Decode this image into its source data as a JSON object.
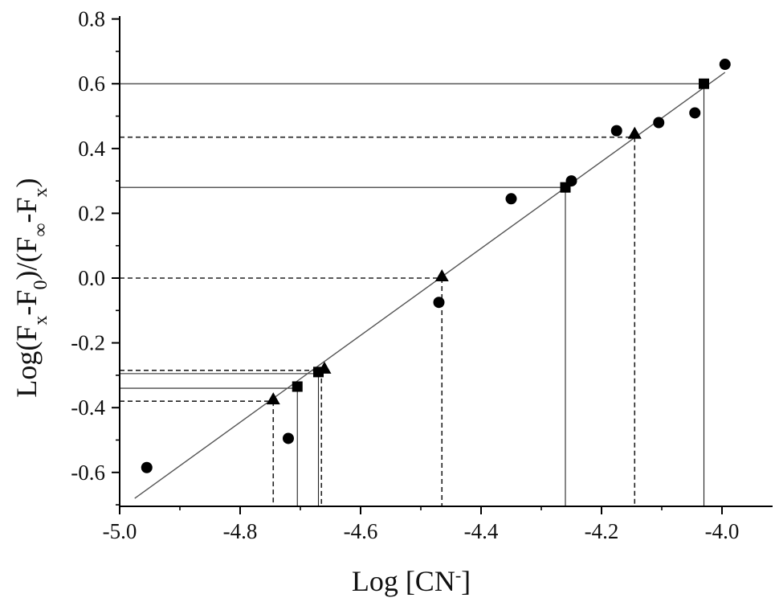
{
  "chart_data": {
    "type": "scatter",
    "title": "",
    "xlabel": {
      "main": "Log [CN",
      "sup": "-",
      "close": "]"
    },
    "ylabel": {
      "p1": "Log(F",
      "s1": "x",
      "p2": "-F",
      "s2": "0",
      "p3": ")/(F",
      "s3": "∞",
      "p4": "-F",
      "s4": "x",
      "p5": ")"
    },
    "xlim": [
      -5.0,
      -3.9
    ],
    "ylim": [
      -0.7,
      0.8
    ],
    "x_ticks": [
      -5.0,
      -4.8,
      -4.6,
      -4.4,
      -4.2,
      -4.0
    ],
    "x_tick_labels": [
      "-5.0",
      "-4.8",
      "-4.6",
      "-4.4",
      "-4.2",
      "-4.0"
    ],
    "y_ticks": [
      -0.6,
      -0.4,
      -0.2,
      0.0,
      0.2,
      0.4,
      0.6,
      0.8
    ],
    "y_tick_labels": [
      "-0.6",
      "-0.4",
      "-0.2",
      "0.0",
      "0.2",
      "0.4",
      "0.6",
      "0.8"
    ],
    "grid": false,
    "fit_line": {
      "x": [
        -4.975,
        -3.995
      ],
      "y": [
        -0.68,
        0.635
      ]
    },
    "series": [
      {
        "marker": "circle",
        "x": [
          -4.955,
          -4.72,
          -4.47,
          -4.35,
          -4.25,
          -4.175,
          -4.105,
          -4.045,
          -3.995
        ],
        "y": [
          -0.585,
          -0.495,
          -0.075,
          0.245,
          0.3,
          0.455,
          0.48,
          0.51,
          0.66
        ]
      },
      {
        "marker": "square",
        "x": [
          -4.705,
          -4.67,
          -4.26,
          -4.03
        ],
        "y": [
          -0.335,
          -0.29,
          0.28,
          0.6
        ]
      },
      {
        "marker": "triangle",
        "x": [
          -4.745,
          -4.66,
          -4.465,
          -4.145
        ],
        "y": [
          -0.375,
          -0.28,
          0.005,
          0.445
        ]
      }
    ],
    "guides": [
      {
        "style": "solid",
        "x": -4.705,
        "y": -0.34
      },
      {
        "style": "solid",
        "x": -4.67,
        "y": -0.295
      },
      {
        "style": "solid",
        "x": -4.26,
        "y": 0.28
      },
      {
        "style": "solid",
        "x": -4.03,
        "y": 0.6
      },
      {
        "style": "dashed",
        "x": -4.745,
        "y": -0.38
      },
      {
        "style": "dashed",
        "x": -4.665,
        "y": -0.285
      },
      {
        "style": "dashed",
        "x": -4.465,
        "y": 0.0
      },
      {
        "style": "dashed",
        "x": -4.145,
        "y": 0.435
      }
    ]
  }
}
